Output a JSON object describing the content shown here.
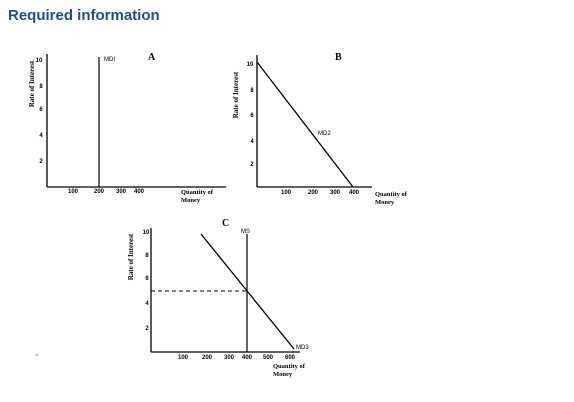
{
  "header": {
    "title": "Required information"
  },
  "panels": [
    {
      "title": "A",
      "ylabel": "Rate of Interest",
      "xlabel_line1": "Quantity of",
      "xlabel_line2": "Money",
      "y_ticks": [
        "2",
        "4",
        "6",
        "8",
        "10"
      ],
      "x_ticks": [
        "100",
        "200",
        "300",
        "400"
      ],
      "curve_label": "MDI"
    },
    {
      "title": "B",
      "ylabel": "Rate of Interest",
      "xlabel_line1": "Quantity of",
      "xlabel_line2": "Money",
      "y_ticks": [
        "2",
        "4",
        "6",
        "8",
        "10"
      ],
      "x_ticks": [
        "100",
        "200",
        "300",
        "400"
      ],
      "curve_label": "MD2"
    },
    {
      "title": "C",
      "ylabel": "Rate of Interest",
      "xlabel_line1": "Quantity of",
      "xlabel_line2": "Money",
      "y_ticks": [
        "2",
        "4",
        "6",
        "8",
        "10"
      ],
      "x_ticks": [
        "100",
        "200",
        "300",
        "400",
        "500",
        "600"
      ],
      "curve_label": "MD3",
      "supply_label": "MS"
    }
  ],
  "chart_data": [
    {
      "type": "line",
      "title": "A",
      "xlabel": "Quantity of Money",
      "ylabel": "Rate of Interest",
      "xlim": [
        0,
        500
      ],
      "ylim": [
        0,
        10
      ],
      "series": [
        {
          "name": "MDI",
          "x": [
            200,
            200
          ],
          "y": [
            0,
            10
          ]
        }
      ]
    },
    {
      "type": "line",
      "title": "B",
      "xlabel": "Quantity of Money",
      "ylabel": "Rate of Interest",
      "xlim": [
        0,
        450
      ],
      "ylim": [
        0,
        10
      ],
      "series": [
        {
          "name": "MD2",
          "x": [
            0,
            400
          ],
          "y": [
            10,
            0
          ]
        }
      ]
    },
    {
      "type": "line",
      "title": "C",
      "xlabel": "Quantity of Money",
      "ylabel": "Rate of Interest",
      "xlim": [
        0,
        650
      ],
      "ylim": [
        0,
        10
      ],
      "series": [
        {
          "name": "MS",
          "x": [
            400,
            400
          ],
          "y": [
            0,
            10
          ]
        },
        {
          "name": "MD3",
          "x": [
            200,
            600
          ],
          "y": [
            10,
            0
          ]
        }
      ],
      "reference_line": {
        "y": 5,
        "style": "dashed"
      }
    }
  ],
  "colors": {
    "heading": "#1f4f8f",
    "ink": "#000000",
    "background": "#ffffff"
  }
}
